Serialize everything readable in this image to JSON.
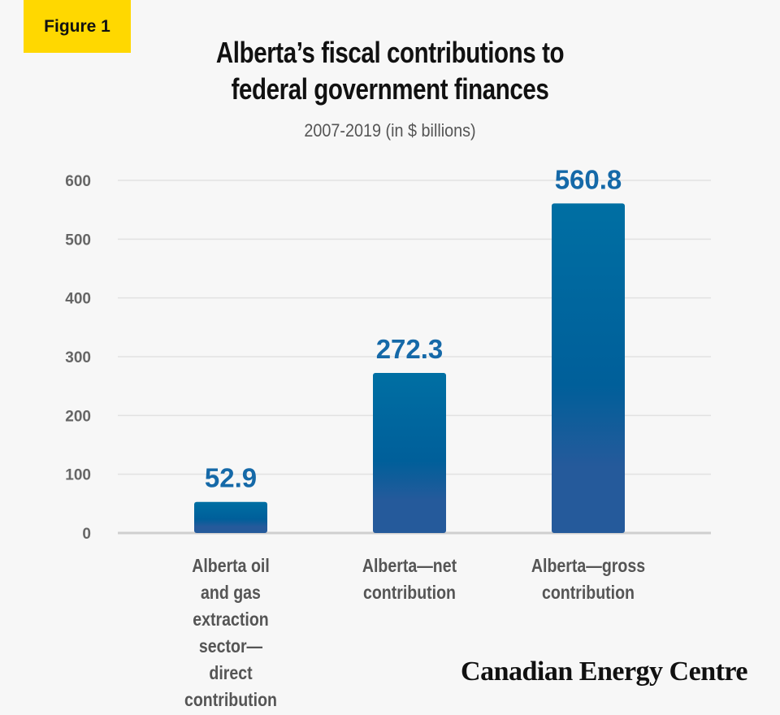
{
  "badge": "Figure 1",
  "brand": "Canadian Energy Centre",
  "chart_data": {
    "type": "bar",
    "title": "Alberta’s fiscal contributions to federal government finances",
    "subtitle": "2007-2019 (in $ billions)",
    "categories": [
      "Alberta oil and gas extraction sector—direct contribution",
      "Alberta—net contribution",
      "Alberta—gross contribution"
    ],
    "values": [
      52.9,
      272.3,
      560.8
    ],
    "data_labels": [
      "52.9",
      "272.3",
      "560.8"
    ],
    "yticks": [
      0,
      100,
      200,
      300,
      400,
      500,
      600
    ],
    "ylim": [
      0,
      600
    ],
    "grid": true,
    "colors": {
      "bar_top": "#006fa3",
      "bar_bottom": "#255a9b",
      "label": "#1569a8",
      "badge": "#ffd800"
    }
  }
}
